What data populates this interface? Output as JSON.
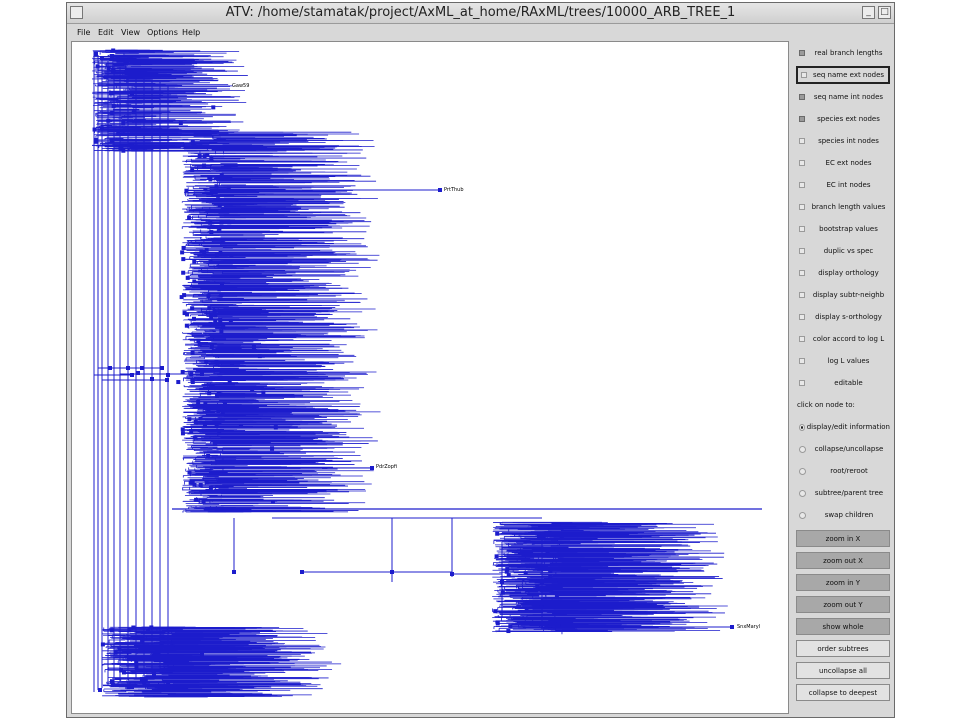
{
  "window": {
    "title": "ATV: /home/stamatak/project/AxML_at_home/RAxML/trees/10000_ARB_TREE_1",
    "minimize_glyph": "_",
    "maximize_glyph": "□",
    "close_glyph": "×"
  },
  "menu": [
    "File",
    "Edit",
    "View",
    "Options",
    "Help"
  ],
  "colors": {
    "tree": "#1c1ccc",
    "canvas": "#ffffff",
    "panel": "#d8d8d8"
  },
  "tree_labels": [
    "PrtThub",
    "SnxMaryl",
    "PdrZopfi",
    "Gaw59"
  ],
  "options": [
    {
      "label": "real branch lengths",
      "checked": true
    },
    {
      "label": "seq name ext nodes",
      "checked": false,
      "focused": true
    },
    {
      "label": "seq name int nodes",
      "checked": true
    },
    {
      "label": "species ext nodes",
      "checked": true
    },
    {
      "label": "species int nodes",
      "checked": false
    },
    {
      "label": "EC ext nodes",
      "checked": false
    },
    {
      "label": "EC int nodes",
      "checked": false
    },
    {
      "label": "branch length values",
      "checked": false
    },
    {
      "label": "bootstrap values",
      "checked": false
    },
    {
      "label": "duplic vs spec",
      "checked": false
    },
    {
      "label": "display orthology",
      "checked": false
    },
    {
      "label": "display subtr-neighb",
      "checked": false
    },
    {
      "label": "display s-orthology",
      "checked": false
    },
    {
      "label": "color accord to log L",
      "checked": false
    },
    {
      "label": "log L values",
      "checked": false
    },
    {
      "label": "editable",
      "checked": false
    }
  ],
  "click_section": "click on node to:",
  "click_options": [
    {
      "label": "display/edit information",
      "selected": true
    },
    {
      "label": "collapse/uncollapse",
      "selected": false
    },
    {
      "label": "root/reroot",
      "selected": false
    },
    {
      "label": "subtree/parent tree",
      "selected": false
    },
    {
      "label": "swap children",
      "selected": false
    }
  ],
  "buttons": [
    {
      "label": "zoom in X",
      "style": "dark"
    },
    {
      "label": "zoom out X",
      "style": "dark"
    },
    {
      "label": "zoom in Y",
      "style": "dark"
    },
    {
      "label": "zoom out Y",
      "style": "dark"
    },
    {
      "label": "show whole",
      "style": "dark"
    },
    {
      "label": "order subtrees",
      "style": "light"
    },
    {
      "label": "uncollapse all",
      "style": "light"
    },
    {
      "label": "collapse to deepest",
      "style": "light"
    }
  ]
}
